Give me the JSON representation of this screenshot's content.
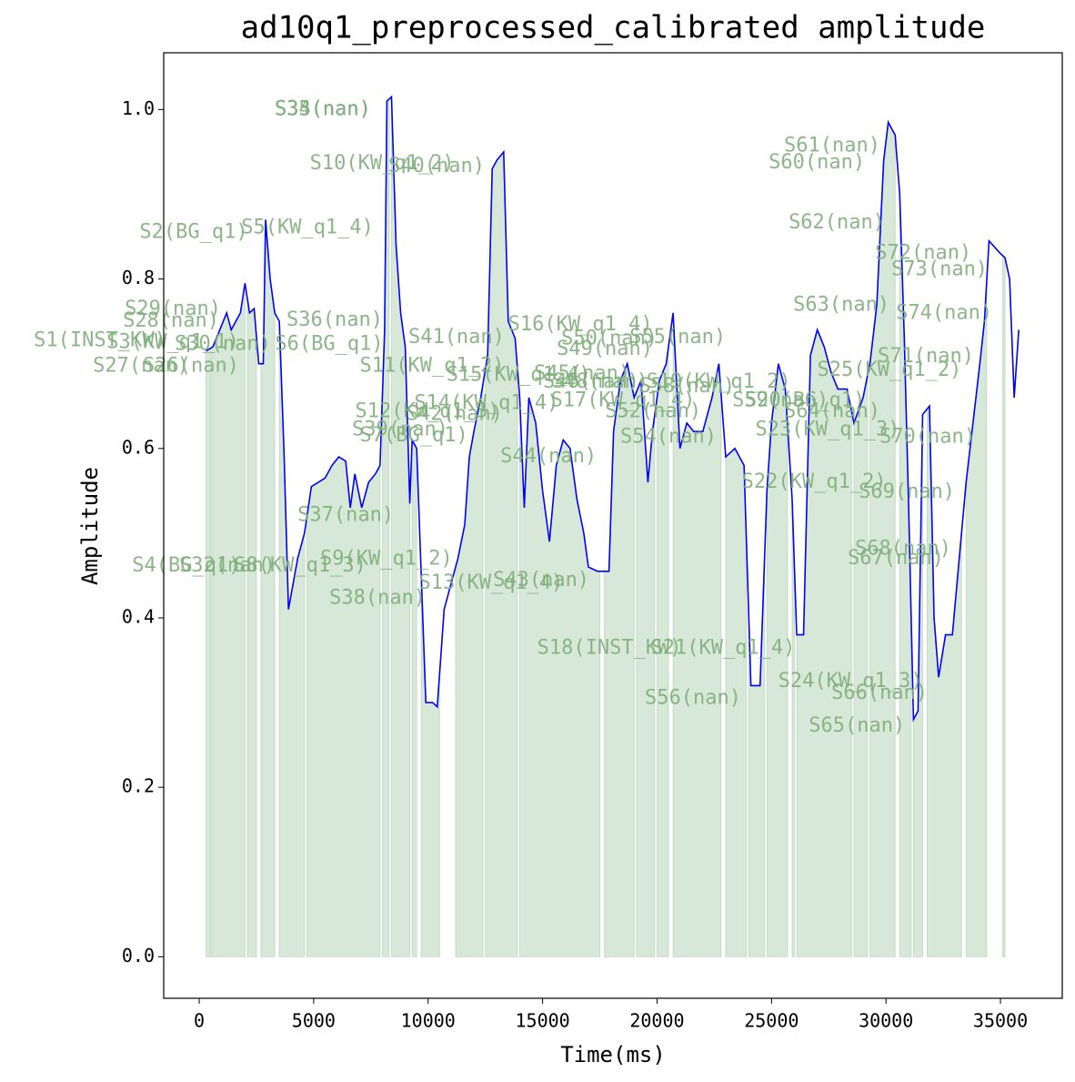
{
  "chart_data": {
    "type": "line",
    "title": "ad10q1_preprocessed_calibrated amplitude",
    "xlabel": "Time(ms)",
    "ylabel": "Amplitude",
    "color": "#0000ff",
    "span_color": "#8fbc8f",
    "xlim": [
      -1550,
      37700
    ],
    "ylim": [
      -0.049,
      1.067
    ],
    "xticks": [
      0,
      5000,
      10000,
      15000,
      20000,
      25000,
      30000,
      35000
    ],
    "yticks": [
      {
        "value": 0,
        "label": "0.0"
      },
      0.2,
      0.4,
      0.6,
      0.8,
      {
        "value": 1,
        "label": "1.0"
      }
    ],
    "x": [
      300,
      600,
      900,
      1200,
      1400,
      1600,
      1800,
      2000,
      2200,
      2400,
      2600,
      2800,
      2900,
      3100,
      3300,
      3500,
      3700,
      3900,
      4100,
      4300,
      4600,
      4900,
      5200,
      5500,
      5800,
      6100,
      6400,
      6600,
      6800,
      7100,
      7400,
      7700,
      7900,
      8100,
      8200,
      8400,
      8600,
      8800,
      9000,
      9200,
      9300,
      9500,
      9700,
      9900,
      10200,
      10400,
      10700,
      11000,
      11300,
      11600,
      11800,
      12000,
      12300,
      12600,
      12800,
      13000,
      13300,
      13500,
      13800,
      14000,
      14200,
      14400,
      14700,
      15000,
      15300,
      15600,
      15900,
      16200,
      16500,
      16800,
      17000,
      17400,
      17900,
      18100,
      18400,
      18700,
      19000,
      19300,
      19600,
      19800,
      20100,
      20400,
      20700,
      21000,
      21300,
      21600,
      22000,
      22400,
      22700,
      23000,
      23400,
      23800,
      24100,
      24500,
      24800,
      25000,
      25300,
      25600,
      25900,
      26100,
      26400,
      26700,
      27000,
      27300,
      27600,
      27900,
      28300,
      28600,
      29000,
      29300,
      29600,
      29900,
      30100,
      30400,
      30600,
      30800,
      31000,
      31200,
      31400,
      31600,
      31900,
      32100,
      32300,
      32600,
      32900,
      33200,
      33500,
      33800,
      34100,
      34300,
      34500,
      35000,
      35200,
      35400,
      35600,
      35800
    ],
    "values": [
      0.715,
      0.72,
      0.74,
      0.76,
      0.74,
      0.75,
      0.76,
      0.795,
      0.76,
      0.765,
      0.7,
      0.7,
      0.87,
      0.8,
      0.76,
      0.75,
      0.6,
      0.41,
      0.44,
      0.47,
      0.5,
      0.555,
      0.56,
      0.565,
      0.58,
      0.59,
      0.585,
      0.53,
      0.57,
      0.53,
      0.56,
      0.57,
      0.58,
      0.74,
      1.01,
      1.015,
      0.84,
      0.76,
      0.72,
      0.535,
      0.61,
      0.6,
      0.45,
      0.3,
      0.3,
      0.295,
      0.41,
      0.44,
      0.47,
      0.51,
      0.59,
      0.62,
      0.66,
      0.71,
      0.93,
      0.94,
      0.95,
      0.75,
      0.73,
      0.66,
      0.53,
      0.66,
      0.63,
      0.55,
      0.49,
      0.58,
      0.61,
      0.6,
      0.54,
      0.5,
      0.46,
      0.455,
      0.455,
      0.62,
      0.68,
      0.7,
      0.66,
      0.68,
      0.56,
      0.62,
      0.68,
      0.7,
      0.76,
      0.6,
      0.63,
      0.62,
      0.62,
      0.66,
      0.7,
      0.59,
      0.6,
      0.58,
      0.32,
      0.32,
      0.55,
      0.63,
      0.7,
      0.67,
      0.54,
      0.38,
      0.38,
      0.71,
      0.74,
      0.72,
      0.69,
      0.67,
      0.67,
      0.63,
      0.66,
      0.7,
      0.77,
      0.94,
      0.985,
      0.97,
      0.9,
      0.73,
      0.52,
      0.28,
      0.29,
      0.64,
      0.65,
      0.4,
      0.33,
      0.38,
      0.38,
      0.47,
      0.56,
      0.63,
      0.7,
      0.75,
      0.845,
      0.83,
      0.825,
      0.8,
      0.66,
      0.74
    ],
    "spans": [
      [
        300,
        500
      ],
      [
        550,
        2000
      ],
      [
        2100,
        2500
      ],
      [
        2700,
        3300
      ],
      [
        3500,
        4600
      ],
      [
        4700,
        7900
      ],
      [
        8000,
        8300
      ],
      [
        8400,
        9200
      ],
      [
        9300,
        9500
      ],
      [
        9700,
        10500
      ],
      [
        11200,
        12400
      ],
      [
        12500,
        13900
      ],
      [
        14000,
        17500
      ],
      [
        17700,
        19000
      ],
      [
        19100,
        19900
      ],
      [
        20000,
        20500
      ],
      [
        20700,
        22800
      ],
      [
        23000,
        23900
      ],
      [
        24000,
        24700
      ],
      [
        24800,
        25700
      ],
      [
        25900,
        26000
      ],
      [
        26100,
        28500
      ],
      [
        28600,
        29200
      ],
      [
        29300,
        30400
      ],
      [
        30600,
        31100
      ],
      [
        31200,
        31600
      ],
      [
        31800,
        33300
      ],
      [
        33500,
        34400
      ],
      [
        35100,
        35200
      ]
    ],
    "annotations": [
      {
        "text": "S33(nan)",
        "x": 5400,
        "y": 1.0
      },
      {
        "text": "S34(nan)",
        "x": 5400,
        "y": 1.0
      },
      {
        "text": "S35(nan)",
        "x": 5400,
        "y": 1.0
      },
      {
        "text": "S10(KW_q1_2)",
        "x": 7990,
        "y": 0.936
      },
      {
        "text": "S40(nan)",
        "x": 10370,
        "y": 0.933
      },
      {
        "text": "S2(BG_q1)",
        "x": -240,
        "y": 0.855
      },
      {
        "text": "S5(KW_q1_4)",
        "x": 4730,
        "y": 0.86
      },
      {
        "text": "S61(nan)",
        "x": 27650,
        "y": 0.957
      },
      {
        "text": "S60(nan)",
        "x": 26980,
        "y": 0.937
      },
      {
        "text": "S62(nan)",
        "x": 27850,
        "y": 0.866
      },
      {
        "text": "S72(nan)",
        "x": 31630,
        "y": 0.83
      },
      {
        "text": "S73(nan)",
        "x": 32340,
        "y": 0.811
      },
      {
        "text": "S74(nan)",
        "x": 32540,
        "y": 0.759
      },
      {
        "text": "S63(nan)",
        "x": 28050,
        "y": 0.769
      },
      {
        "text": "S29(nan)",
        "x": -1150,
        "y": 0.764
      },
      {
        "text": "S28(nan)",
        "x": -1230,
        "y": 0.75
      },
      {
        "text": "S36(nan)",
        "x": 5920,
        "y": 0.751
      },
      {
        "text": "S1(INST_KW)",
        "x": -4330,
        "y": 0.727
      },
      {
        "text": "S3(KW_q1_1)",
        "x": -1150,
        "y": 0.725
      },
      {
        "text": "S30(nan)",
        "x": 1030,
        "y": 0.723
      },
      {
        "text": "S6(BG_q1)",
        "x": 5680,
        "y": 0.723
      },
      {
        "text": "S41(nan)",
        "x": 11240,
        "y": 0.731
      },
      {
        "text": "S16(KW_q1_4)",
        "x": 16650,
        "y": 0.746
      },
      {
        "text": "S50(nan)",
        "x": 17920,
        "y": 0.729
      },
      {
        "text": "S55(nan)",
        "x": 20900,
        "y": 0.731
      },
      {
        "text": "S49(nan)",
        "x": 17720,
        "y": 0.717
      },
      {
        "text": "S27(nan)",
        "x": -2540,
        "y": 0.697
      },
      {
        "text": "S26(nan)",
        "x": -360,
        "y": 0.697
      },
      {
        "text": "S11(KW_q1_2)",
        "x": 10170,
        "y": 0.697
      },
      {
        "text": "S15(KW_q1_4)",
        "x": 13950,
        "y": 0.686
      },
      {
        "text": "S45(nan)",
        "x": 16730,
        "y": 0.688
      },
      {
        "text": "S46(nan)",
        "x": 17120,
        "y": 0.678
      },
      {
        "text": "S48(nan)",
        "x": 17520,
        "y": 0.678
      },
      {
        "text": "S19(KW_q1_2)",
        "x": 22690,
        "y": 0.678
      },
      {
        "text": "S58(nan)",
        "x": 21300,
        "y": 0.673
      },
      {
        "text": "S25(KW_q1_2)",
        "x": 30150,
        "y": 0.692
      },
      {
        "text": "S71(nan)",
        "x": 31740,
        "y": 0.708
      },
      {
        "text": "S17(KW_q1_4)",
        "x": 18510,
        "y": 0.656
      },
      {
        "text": "S59(nan)",
        "x": 25390,
        "y": 0.656
      },
      {
        "text": "S20(BG_q1)",
        "x": 26460,
        "y": 0.656
      },
      {
        "text": "S64(nan)",
        "x": 27650,
        "y": 0.643
      },
      {
        "text": "S12(KW_q1_3)",
        "x": 9970,
        "y": 0.643
      },
      {
        "text": "S42(nan)",
        "x": 11160,
        "y": 0.64
      },
      {
        "text": "S14(KW_q1_4)",
        "x": 12550,
        "y": 0.653
      },
      {
        "text": "S52(nan)",
        "x": 19830,
        "y": 0.643
      },
      {
        "text": "S39(nan)",
        "x": 8780,
        "y": 0.622
      },
      {
        "text": "S7(BG_q1)",
        "x": 9380,
        "y": 0.615
      },
      {
        "text": "S54(nan)",
        "x": 20500,
        "y": 0.613
      },
      {
        "text": "S23(KW_q1_3)",
        "x": 27450,
        "y": 0.622
      },
      {
        "text": "S70(nan)",
        "x": 31820,
        "y": 0.613
      },
      {
        "text": "S44(nan)",
        "x": 15260,
        "y": 0.59
      },
      {
        "text": "S22(KW_q1_2)",
        "x": 26860,
        "y": 0.56
      },
      {
        "text": "S69(nan)",
        "x": 30910,
        "y": 0.548
      },
      {
        "text": "S37(nan)",
        "x": 6400,
        "y": 0.521
      },
      {
        "text": "S68(nan)",
        "x": 30750,
        "y": 0.481
      },
      {
        "text": "S67(nan)",
        "x": 30430,
        "y": 0.47
      },
      {
        "text": "S4(BG_q1)",
        "x": -560,
        "y": 0.461
      },
      {
        "text": "S32(nan)",
        "x": 1230,
        "y": 0.461
      },
      {
        "text": "S9(KW_q1_2)",
        "x": 8180,
        "y": 0.469
      },
      {
        "text": "S8(KW_q1_3)",
        "x": 4410,
        "y": 0.461
      },
      {
        "text": "S13(KW_q1_4)",
        "x": 12750,
        "y": 0.441
      },
      {
        "text": "S43(nan)",
        "x": 14940,
        "y": 0.444
      },
      {
        "text": "S38(nan)",
        "x": 7790,
        "y": 0.423
      },
      {
        "text": "S18(INST_KW)",
        "x": 17920,
        "y": 0.364
      },
      {
        "text": "S21(KW_q1_4)",
        "x": 22880,
        "y": 0.364
      },
      {
        "text": "S56(nan)",
        "x": 21570,
        "y": 0.305
      },
      {
        "text": "S24(KW_q1_3)",
        "x": 28450,
        "y": 0.325
      },
      {
        "text": "S66(nan)",
        "x": 29720,
        "y": 0.311
      },
      {
        "text": "S65(nan)",
        "x": 28730,
        "y": 0.272
      }
    ]
  }
}
